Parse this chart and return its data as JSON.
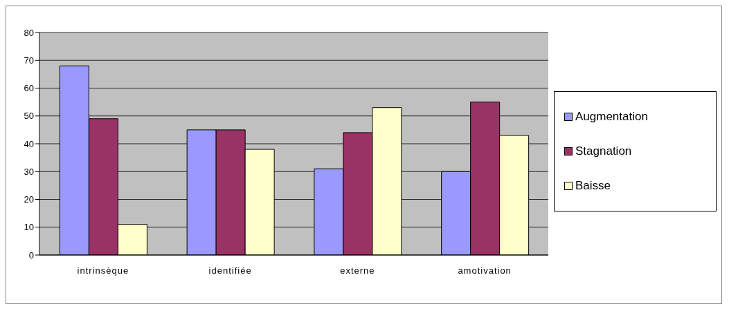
{
  "chart_data": {
    "type": "bar",
    "categories": [
      "intrinsèque",
      "identifiée",
      "externe",
      "amotivation"
    ],
    "series": [
      {
        "name": "Augmentation",
        "color": "#9999ff",
        "values": [
          68,
          45,
          31,
          30
        ]
      },
      {
        "name": "Stagnation",
        "color": "#993366",
        "values": [
          49,
          45,
          44,
          55
        ]
      },
      {
        "name": "Baisse",
        "color": "#ffffcc",
        "values": [
          11,
          38,
          53,
          43
        ]
      }
    ],
    "ylim": [
      0,
      80
    ],
    "yticks": [
      0,
      10,
      20,
      30,
      40,
      50,
      60,
      70,
      80
    ],
    "grid": "y",
    "legend": "right"
  }
}
